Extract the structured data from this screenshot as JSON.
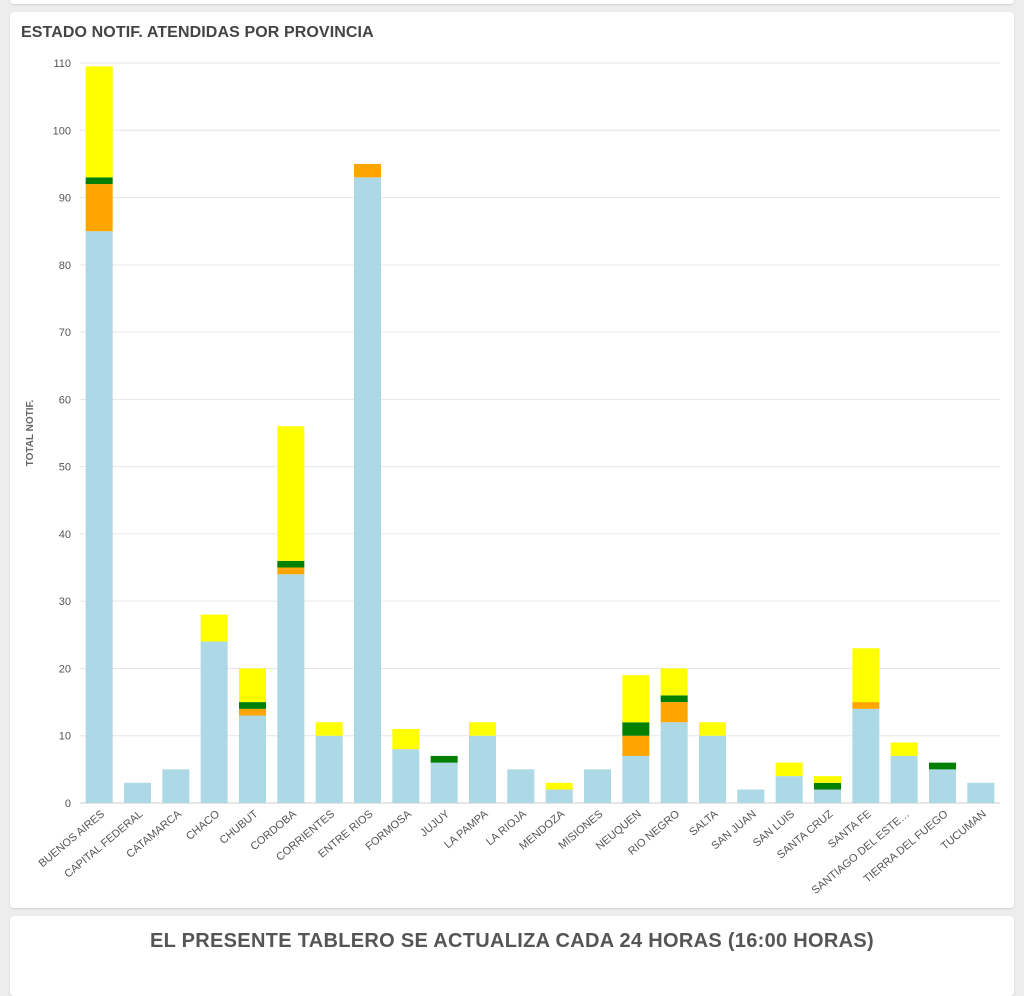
{
  "chart_data": {
    "type": "bar",
    "stacked": true,
    "title": "ESTADO NOTIF. ATENDIDAS POR PROVINCIA",
    "ylabel": "TOTAL NOTIF.",
    "ylim": [
      0,
      110
    ],
    "yticks": [
      0,
      10,
      20,
      30,
      40,
      50,
      60,
      70,
      80,
      90,
      100,
      110
    ],
    "grid": true,
    "legend": "none",
    "categories": [
      "BUENOS AIRES",
      "CAPITAL FEDERAL",
      "CATAMARCA",
      "CHACO",
      "CHUBUT",
      "CORDOBA",
      "CORRIENTES",
      "ENTRE RIOS",
      "FORMOSA",
      "JUJUY",
      "LA PAMPA",
      "LA RIOJA",
      "MENDOZA",
      "MISIONES",
      "NEUQUEN",
      "RIO NEGRO",
      "SALTA",
      "SAN JUAN",
      "SAN LUIS",
      "SANTA CRUZ",
      "SANTA FE",
      "SANTIAGO DEL ESTE…",
      "TIERRA DEL FUEGO",
      "TUCUMAN"
    ],
    "series": [
      {
        "color": "#add8e6",
        "values": [
          85,
          3,
          5,
          24,
          13,
          34,
          10,
          93,
          8,
          6,
          10,
          5,
          2,
          5,
          7,
          12,
          10,
          2,
          4,
          2,
          14,
          7,
          5,
          3
        ]
      },
      {
        "color": "#ffa500",
        "values": [
          7,
          0,
          0,
          0,
          1,
          1,
          0,
          2,
          0,
          0,
          0,
          0,
          0,
          0,
          3,
          3,
          0,
          0,
          0,
          0,
          1,
          0,
          0,
          0
        ]
      },
      {
        "color": "#008000",
        "values": [
          1,
          0,
          0,
          0,
          1,
          1,
          0,
          0,
          0,
          1,
          0,
          0,
          0,
          0,
          2,
          1,
          0,
          0,
          0,
          1,
          0,
          0,
          1,
          0
        ]
      },
      {
        "color": "#ffff00",
        "values": [
          16.5,
          0,
          0,
          4,
          5,
          20,
          2,
          0,
          3,
          0,
          2,
          0,
          1,
          0,
          7,
          4,
          2,
          0,
          2,
          1,
          8,
          2,
          0,
          0
        ]
      }
    ]
  },
  "footer": {
    "text": "EL PRESENTE TABLERO SE ACTUALIZA CADA 24 HORAS (16:00 HORAS)"
  }
}
